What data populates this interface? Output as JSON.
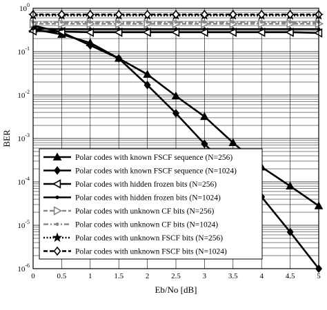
{
  "chart_data": {
    "type": "line",
    "title": "",
    "xlabel": "Eb/No [dB]",
    "ylabel": "BER",
    "xlim": [
      0,
      5
    ],
    "ylim": [
      1e-06,
      1
    ],
    "y_scale": "log",
    "grid": true,
    "legend_position": "lower-left",
    "x_ticks": [
      "0",
      "0.5",
      "1",
      "1.5",
      "2",
      "2.5",
      "3",
      "3.5",
      "4",
      "4.5",
      "5"
    ],
    "y_tick_values": [
      1e-06,
      1e-05,
      0.0001,
      0.001,
      0.01,
      0.1,
      1
    ],
    "y_tick_exponents": [
      "-6",
      "-5",
      "-4",
      "-3",
      "-2",
      "-1",
      "0"
    ],
    "y_tick_base": "10",
    "series": [
      {
        "name": "Polar codes with known FSCF sequence (N=256)",
        "marker": "triangle-up",
        "dash": "solid",
        "color": "#000000",
        "x": [
          0,
          0.5,
          1,
          1.5,
          2,
          2.5,
          3,
          3.5,
          4,
          4.5,
          5
        ],
        "y": [
          0.33,
          0.25,
          0.16,
          0.07,
          0.03,
          0.0095,
          0.0032,
          0.0008,
          0.00022,
          8e-05,
          2.8e-05
        ]
      },
      {
        "name": "Polar codes with known FSCF sequence (N=1024)",
        "marker": "diamond",
        "dash": "solid",
        "color": "#000000",
        "x": [
          0,
          0.5,
          1,
          1.5,
          2,
          2.5,
          3,
          3.5,
          4,
          4.5,
          5
        ],
        "y": [
          0.4,
          0.28,
          0.14,
          0.07,
          0.017,
          0.0038,
          0.00075,
          0.00017,
          4.5e-05,
          7e-06,
          1e-06
        ]
      },
      {
        "name": "Polar codes with hidden frozen bits (N=256)",
        "marker": "triangle-left",
        "dash": "solid",
        "color": "#000000",
        "x": [
          0,
          0.5,
          1,
          1.5,
          2,
          2.5,
          3,
          3.5,
          4,
          4.5,
          5
        ],
        "y": [
          0.3,
          0.29,
          0.28,
          0.28,
          0.28,
          0.28,
          0.28,
          0.28,
          0.28,
          0.28,
          0.27
        ]
      },
      {
        "name": "Polar codes with hidden frozen bits (N=1024)",
        "marker": "dot",
        "dash": "solid",
        "color": "#000000",
        "x": [
          0,
          0.5,
          1,
          1.5,
          2,
          2.5,
          3,
          3.5,
          4,
          4.5,
          5
        ],
        "y": [
          0.34,
          0.33,
          0.33,
          0.33,
          0.33,
          0.33,
          0.33,
          0.33,
          0.33,
          0.33,
          0.33
        ]
      },
      {
        "name": "Polar codes with unknown CF bits (N=256)",
        "marker": "triangle-right",
        "dash": "dashed",
        "color": "#888888",
        "x": [
          0,
          0.5,
          1,
          1.5,
          2,
          2.5,
          3,
          3.5,
          4,
          4.5,
          5
        ],
        "y": [
          0.44,
          0.44,
          0.44,
          0.44,
          0.44,
          0.44,
          0.44,
          0.44,
          0.44,
          0.44,
          0.44
        ]
      },
      {
        "name": "Polar codes with unknown CF bits (N=1024)",
        "marker": "dot",
        "dash": "dashdot",
        "color": "#888888",
        "x": [
          0,
          0.5,
          1,
          1.5,
          2,
          2.5,
          3,
          3.5,
          4,
          4.5,
          5
        ],
        "y": [
          0.48,
          0.48,
          0.48,
          0.48,
          0.48,
          0.48,
          0.48,
          0.48,
          0.48,
          0.48,
          0.48
        ]
      },
      {
        "name": "Polar codes with unknown FSCF bits (N=256)",
        "marker": "star",
        "dash": "dotted",
        "color": "#000000",
        "x": [
          0,
          0.5,
          1,
          1.5,
          2,
          2.5,
          3,
          3.5,
          4,
          4.5,
          5
        ],
        "y": [
          0.68,
          0.68,
          0.68,
          0.68,
          0.68,
          0.68,
          0.68,
          0.68,
          0.68,
          0.68,
          0.68
        ]
      },
      {
        "name": "Polar codes with unknown FSCF bits (N=1024)",
        "marker": "diamond-open",
        "dash": "dashed",
        "color": "#000000",
        "x": [
          0,
          0.5,
          1,
          1.5,
          2,
          2.5,
          3,
          3.5,
          4,
          4.5,
          5
        ],
        "y": [
          0.72,
          0.72,
          0.72,
          0.72,
          0.72,
          0.72,
          0.72,
          0.72,
          0.72,
          0.72,
          0.72
        ]
      }
    ]
  }
}
